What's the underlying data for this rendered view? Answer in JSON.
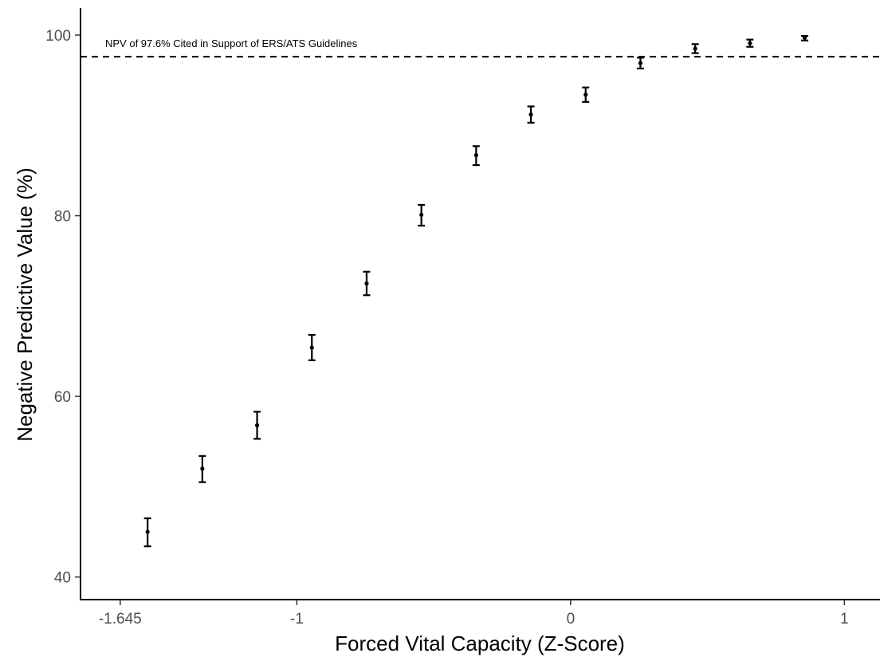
{
  "chart_data": {
    "type": "scatter",
    "xlabel": "Forced Vital Capacity (Z-Score)",
    "ylabel": "Negative Predictive Value (%)",
    "xlim": [
      -1.79,
      1.13
    ],
    "ylim": [
      37.5,
      103
    ],
    "x_ticks": [
      {
        "value": -1.645,
        "label": "-1.645"
      },
      {
        "value": -1,
        "label": "-1"
      },
      {
        "value": 0,
        "label": "0"
      },
      {
        "value": 1,
        "label": "1"
      }
    ],
    "y_ticks": [
      {
        "value": 40,
        "label": "40"
      },
      {
        "value": 60,
        "label": "60"
      },
      {
        "value": 80,
        "label": "80"
      },
      {
        "value": 100,
        "label": "100"
      }
    ],
    "grid": false,
    "reference_line": {
      "y": 97.6,
      "style": "dashed",
      "label": "NPV of 97.6% Cited in Support of ERS/ATS Guidelines"
    },
    "points": [
      {
        "x": -1.545,
        "y": 45.0,
        "lower": 43.4,
        "upper": 46.5
      },
      {
        "x": -1.345,
        "y": 52.0,
        "lower": 50.5,
        "upper": 53.4
      },
      {
        "x": -1.145,
        "y": 56.8,
        "lower": 55.3,
        "upper": 58.3
      },
      {
        "x": -0.945,
        "y": 65.4,
        "lower": 64.0,
        "upper": 66.8
      },
      {
        "x": -0.745,
        "y": 72.5,
        "lower": 71.2,
        "upper": 73.8
      },
      {
        "x": -0.545,
        "y": 80.1,
        "lower": 78.9,
        "upper": 81.2
      },
      {
        "x": -0.345,
        "y": 86.7,
        "lower": 85.6,
        "upper": 87.7
      },
      {
        "x": -0.145,
        "y": 91.2,
        "lower": 90.3,
        "upper": 92.1
      },
      {
        "x": 0.055,
        "y": 93.4,
        "lower": 92.6,
        "upper": 94.2
      },
      {
        "x": 0.255,
        "y": 96.9,
        "lower": 96.3,
        "upper": 97.5
      },
      {
        "x": 0.455,
        "y": 98.5,
        "lower": 98.0,
        "upper": 99.0
      },
      {
        "x": 0.655,
        "y": 99.1,
        "lower": 98.7,
        "upper": 99.5
      },
      {
        "x": 0.855,
        "y": 99.7,
        "lower": 99.4,
        "upper": 99.9
      }
    ]
  }
}
